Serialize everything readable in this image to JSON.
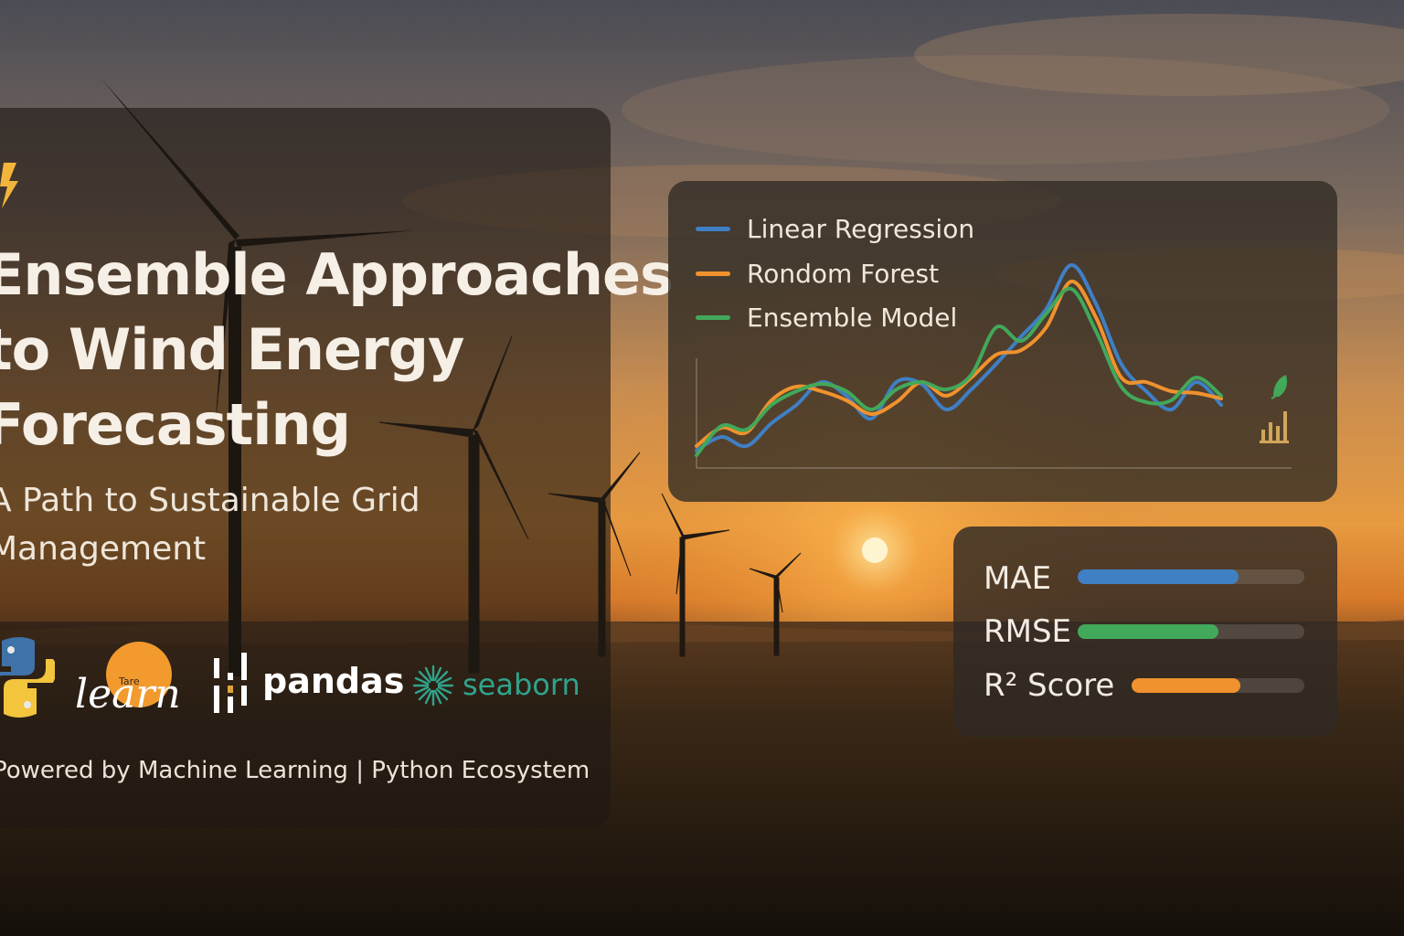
{
  "hero": {
    "title_lines": [
      "Ensemble Approaches",
      "to Wind Energy",
      "Forecasting"
    ],
    "subtitle_lines": [
      "A Path to Sustainable Grid",
      "Management"
    ]
  },
  "logos": {
    "python_icon": "python-icon",
    "sklearn_small": "Tare",
    "sklearn_word": "learn",
    "pandas": "pandas",
    "seaborn": "seaborn"
  },
  "footer": {
    "text": "Powered by Machine Learning  |  Python Ecosystem"
  },
  "chart_data": {
    "type": "line",
    "title": "",
    "xlabel": "",
    "ylabel": "",
    "grid": false,
    "legend_position": "top-left",
    "x": [
      0,
      1,
      2,
      3,
      4,
      5,
      6,
      7,
      8,
      9,
      10,
      11,
      12,
      13,
      14,
      15,
      16,
      17,
      18,
      19,
      20,
      21
    ],
    "series": [
      {
        "name": "Linear Regression",
        "color": "#3f7fc4",
        "values": [
          0.05,
          0.2,
          0.1,
          0.35,
          0.55,
          0.8,
          0.65,
          0.4,
          0.8,
          0.78,
          0.5,
          0.72,
          1.0,
          1.3,
          1.6,
          2.08,
          1.65,
          1.0,
          0.7,
          0.5,
          0.8,
          0.55
        ]
      },
      {
        "name": "Rondom Forest",
        "color": "#f0922e",
        "values": [
          0.1,
          0.3,
          0.25,
          0.6,
          0.75,
          0.7,
          0.6,
          0.45,
          0.58,
          0.8,
          0.65,
          0.85,
          1.1,
          1.15,
          1.4,
          1.9,
          1.5,
          0.85,
          0.8,
          0.7,
          0.68,
          0.62
        ]
      },
      {
        "name": "Ensemble Model",
        "color": "#42a85a",
        "values": [
          0.0,
          0.32,
          0.28,
          0.55,
          0.7,
          0.78,
          0.7,
          0.5,
          0.72,
          0.8,
          0.72,
          0.88,
          1.4,
          1.25,
          1.55,
          1.82,
          1.35,
          0.75,
          0.58,
          0.6,
          0.85,
          0.65
        ]
      }
    ],
    "icons": [
      "leaf-icon",
      "bar-chart-icon"
    ]
  },
  "metrics": [
    {
      "label": "MAE",
      "value": 0.71,
      "color": "#3f7fc4"
    },
    {
      "label": "RMSE",
      "value": 0.62,
      "color": "#42a85a"
    },
    {
      "label": "R² Score",
      "value": 0.63,
      "color": "#f0922e"
    }
  ],
  "colors": {
    "python_blue": "#3f72a8",
    "python_yellow": "#f2c53d",
    "sklearn_orange": "#f29a2e",
    "seaborn_teal": "#2fa38b"
  }
}
